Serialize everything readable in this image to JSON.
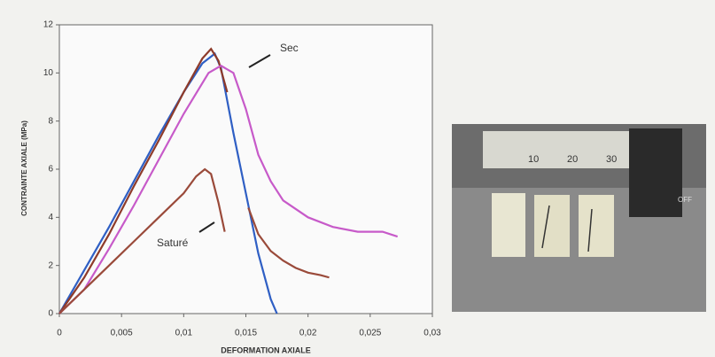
{
  "chart_data": {
    "type": "line",
    "xlabel": "DEFORMATION AXIALE",
    "ylabel": "CONTRAINTE AXIALE (MPa)",
    "annotations": [
      "Sec",
      "Saturé"
    ],
    "xlim": [
      0,
      0.03
    ],
    "ylim": [
      0,
      12
    ],
    "xticks": [
      0,
      {
        "value": 0.005,
        "label": "0,005"
      },
      {
        "value": 0.01,
        "label": "0,01"
      },
      {
        "value": 0.015,
        "label": "0,015"
      },
      {
        "value": 0.02,
        "label": "0,02"
      },
      {
        "value": 0.025,
        "label": "0,025"
      },
      {
        "value": 0.03,
        "label": "0,03"
      }
    ],
    "yticks": [
      0,
      2,
      4,
      6,
      8,
      10,
      12
    ],
    "series": [
      {
        "color": "#2f5fc4",
        "x": [
          0,
          0.002,
          0.004,
          0.006,
          0.008,
          0.01,
          0.0115,
          0.0125,
          0.013,
          0.014,
          0.015,
          0.016,
          0.017,
          0.0175
        ],
        "values": [
          0,
          1.8,
          3.6,
          5.5,
          7.4,
          9.2,
          10.4,
          10.8,
          10.2,
          7.5,
          5,
          2.5,
          0.6,
          0
        ]
      },
      {
        "color": "#8e3b2a",
        "x": [
          0,
          0.002,
          0.004,
          0.006,
          0.008,
          0.01,
          0.0115,
          0.0122,
          0.0128,
          0.0135
        ],
        "values": [
          0,
          1.5,
          3.3,
          5.3,
          7.2,
          9.2,
          10.6,
          11,
          10.5,
          9.2
        ]
      },
      {
        "color": "#c75ac9",
        "x": [
          0,
          0.002,
          0.004,
          0.006,
          0.008,
          0.01,
          0.012,
          0.013,
          0.014,
          0.015,
          0.016,
          0.017,
          0.018,
          0.02,
          0.022,
          0.024,
          0.026,
          0.0272
        ],
        "values": [
          0,
          1,
          2.7,
          4.5,
          6.4,
          8.3,
          10,
          10.3,
          10,
          8.5,
          6.6,
          5.5,
          4.7,
          4,
          3.6,
          3.4,
          3.4,
          3.2
        ]
      },
      {
        "color": "#9a4a3a",
        "x": [
          0,
          0.002,
          0.004,
          0.006,
          0.008,
          0.01,
          0.011,
          0.0117,
          0.0122,
          0.0128,
          0.0133,
          0.014,
          0.0152,
          0.016,
          0.017,
          0.018,
          0.019,
          0.02,
          0.021,
          0.0217
        ],
        "values": [
          0,
          1,
          2,
          3,
          4,
          5,
          5.7,
          6,
          5.8,
          4.6,
          3.4,
          null,
          4.4,
          3.3,
          2.6,
          2.2,
          1.9,
          1.7,
          1.6,
          1.5
        ]
      }
    ]
  },
  "photo": {
    "ruler_labels": [
      "10",
      "20",
      "30"
    ],
    "caliper_label": "OFF"
  }
}
